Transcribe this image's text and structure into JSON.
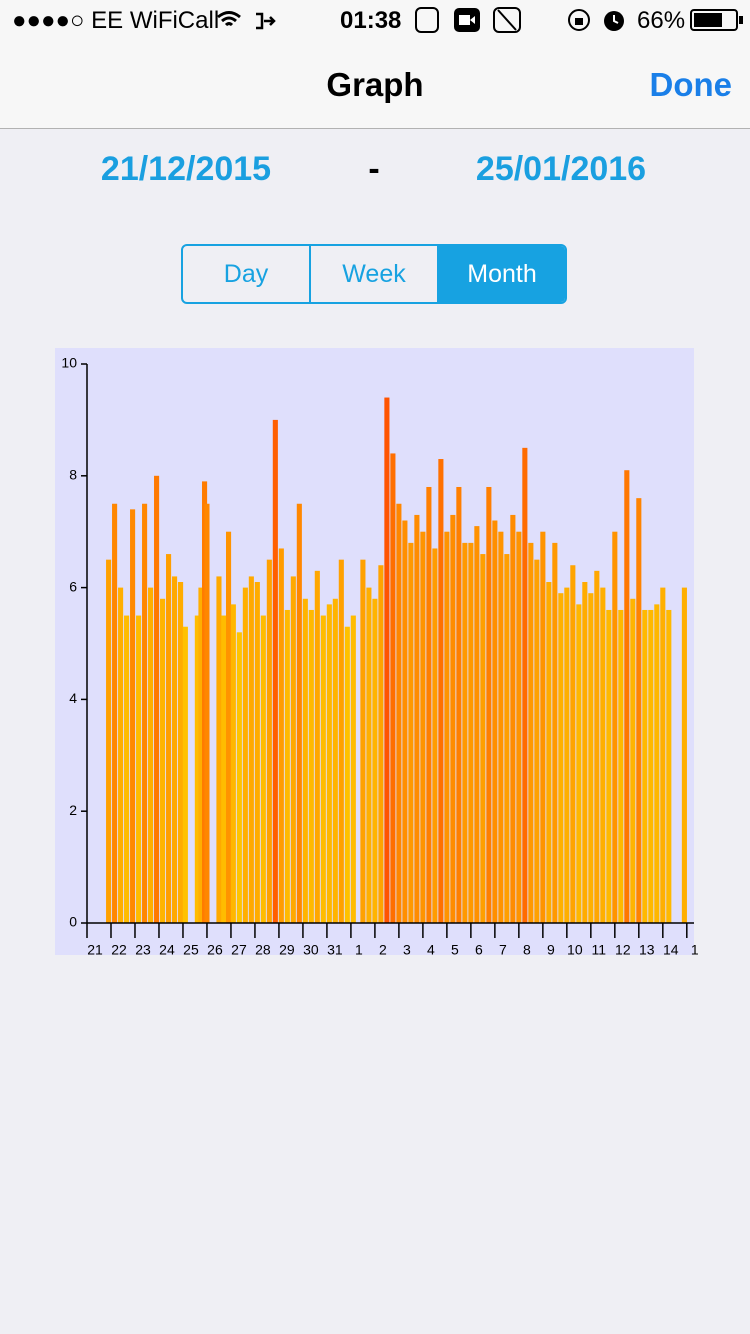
{
  "status": {
    "carrier": "●●●●○ EE WiFiCall",
    "time": "01:38",
    "battery": "66%"
  },
  "nav": {
    "title": "Graph",
    "done": "Done"
  },
  "dates": {
    "start": "21/12/2015",
    "separator": "-",
    "end": "25/01/2016"
  },
  "segments": {
    "items": [
      "Day",
      "Week",
      "Month"
    ],
    "selected": 2
  },
  "chart_data": {
    "type": "bar",
    "x": [
      0.9,
      1.15,
      1.4,
      1.65,
      1.9,
      2.15,
      2.4,
      2.65,
      2.9,
      3.15,
      3.4,
      3.65,
      3.9,
      4.1,
      4.6,
      4.75,
      4.9,
      5.0,
      5.5,
      5.7,
      5.9,
      6.1,
      6.35,
      6.6,
      6.85,
      7.1,
      7.35,
      7.6,
      7.85,
      8.1,
      8.35,
      8.6,
      8.85,
      9.1,
      9.35,
      9.6,
      9.85,
      10.1,
      10.35,
      10.6,
      10.85,
      11.1,
      11.5,
      11.75,
      12.0,
      12.25,
      12.5,
      12.75,
      13.0,
      13.25,
      13.5,
      13.75,
      14.0,
      14.25,
      14.5,
      14.75,
      15.0,
      15.25,
      15.5,
      15.75,
      16.0,
      16.25,
      16.5,
      16.75,
      17.0,
      17.25,
      17.5,
      17.75,
      18.0,
      18.25,
      18.5,
      18.75,
      19.0,
      19.25,
      19.5,
      19.75,
      20.0,
      20.25,
      20.5,
      20.75,
      21.0,
      21.25,
      21.5,
      21.75,
      22.0,
      22.25,
      22.5,
      22.75,
      23.0,
      23.25,
      23.5,
      23.75,
      24.0,
      24.25,
      24.9
    ],
    "values": [
      6.5,
      7.5,
      6.0,
      5.5,
      7.4,
      5.5,
      7.5,
      6.0,
      8.0,
      5.8,
      6.6,
      6.2,
      6.1,
      5.3,
      5.5,
      6.0,
      7.9,
      7.5,
      6.2,
      5.5,
      7.0,
      5.7,
      5.2,
      6.0,
      6.2,
      6.1,
      5.5,
      6.5,
      9.0,
      6.7,
      5.6,
      6.2,
      7.5,
      5.8,
      5.6,
      6.3,
      5.5,
      5.7,
      5.8,
      6.5,
      5.3,
      5.5,
      6.5,
      6.0,
      5.8,
      6.4,
      9.4,
      8.4,
      7.5,
      7.2,
      6.8,
      7.3,
      7.0,
      7.8,
      6.7,
      8.3,
      7.0,
      7.3,
      7.8,
      6.8,
      6.8,
      7.1,
      6.6,
      7.8,
      7.2,
      7.0,
      6.6,
      7.3,
      7.0,
      8.5,
      6.8,
      6.5,
      7.0,
      6.1,
      6.8,
      5.9,
      6.0,
      6.4,
      5.7,
      6.1,
      5.9,
      6.3,
      6.0,
      5.6,
      7.0,
      5.6,
      8.1,
      5.8,
      7.6,
      5.6,
      5.6,
      5.7,
      6.0,
      5.6,
      6.0
    ],
    "color_low": "#ffc400",
    "color_high": "#ff5400",
    "xlim": [
      0,
      25.3
    ],
    "ylim": [
      0,
      10
    ],
    "yticks": [
      0,
      2,
      4,
      6,
      8,
      10
    ],
    "xticks": [
      {
        "value": 0,
        "label": "21"
      },
      {
        "value": 1,
        "label": "22"
      },
      {
        "value": 2,
        "label": "23"
      },
      {
        "value": 3,
        "label": "24"
      },
      {
        "value": 4,
        "label": "25"
      },
      {
        "value": 5,
        "label": "26"
      },
      {
        "value": 6,
        "label": "27"
      },
      {
        "value": 7,
        "label": "28"
      },
      {
        "value": 8,
        "label": "29"
      },
      {
        "value": 9,
        "label": "30"
      },
      {
        "value": 10,
        "label": "31"
      },
      {
        "value": 11,
        "label": "1"
      },
      {
        "value": 12,
        "label": "2"
      },
      {
        "value": 13,
        "label": "3"
      },
      {
        "value": 14,
        "label": "4"
      },
      {
        "value": 15,
        "label": "5"
      },
      {
        "value": 16,
        "label": "6"
      },
      {
        "value": 17,
        "label": "7"
      },
      {
        "value": 18,
        "label": "8"
      },
      {
        "value": 19,
        "label": "9"
      },
      {
        "value": 20,
        "label": "10"
      },
      {
        "value": 21,
        "label": "11"
      },
      {
        "value": 22,
        "label": "12"
      },
      {
        "value": 23,
        "label": "13"
      },
      {
        "value": 24,
        "label": "14"
      },
      {
        "value": 25,
        "label": "1"
      }
    ]
  }
}
